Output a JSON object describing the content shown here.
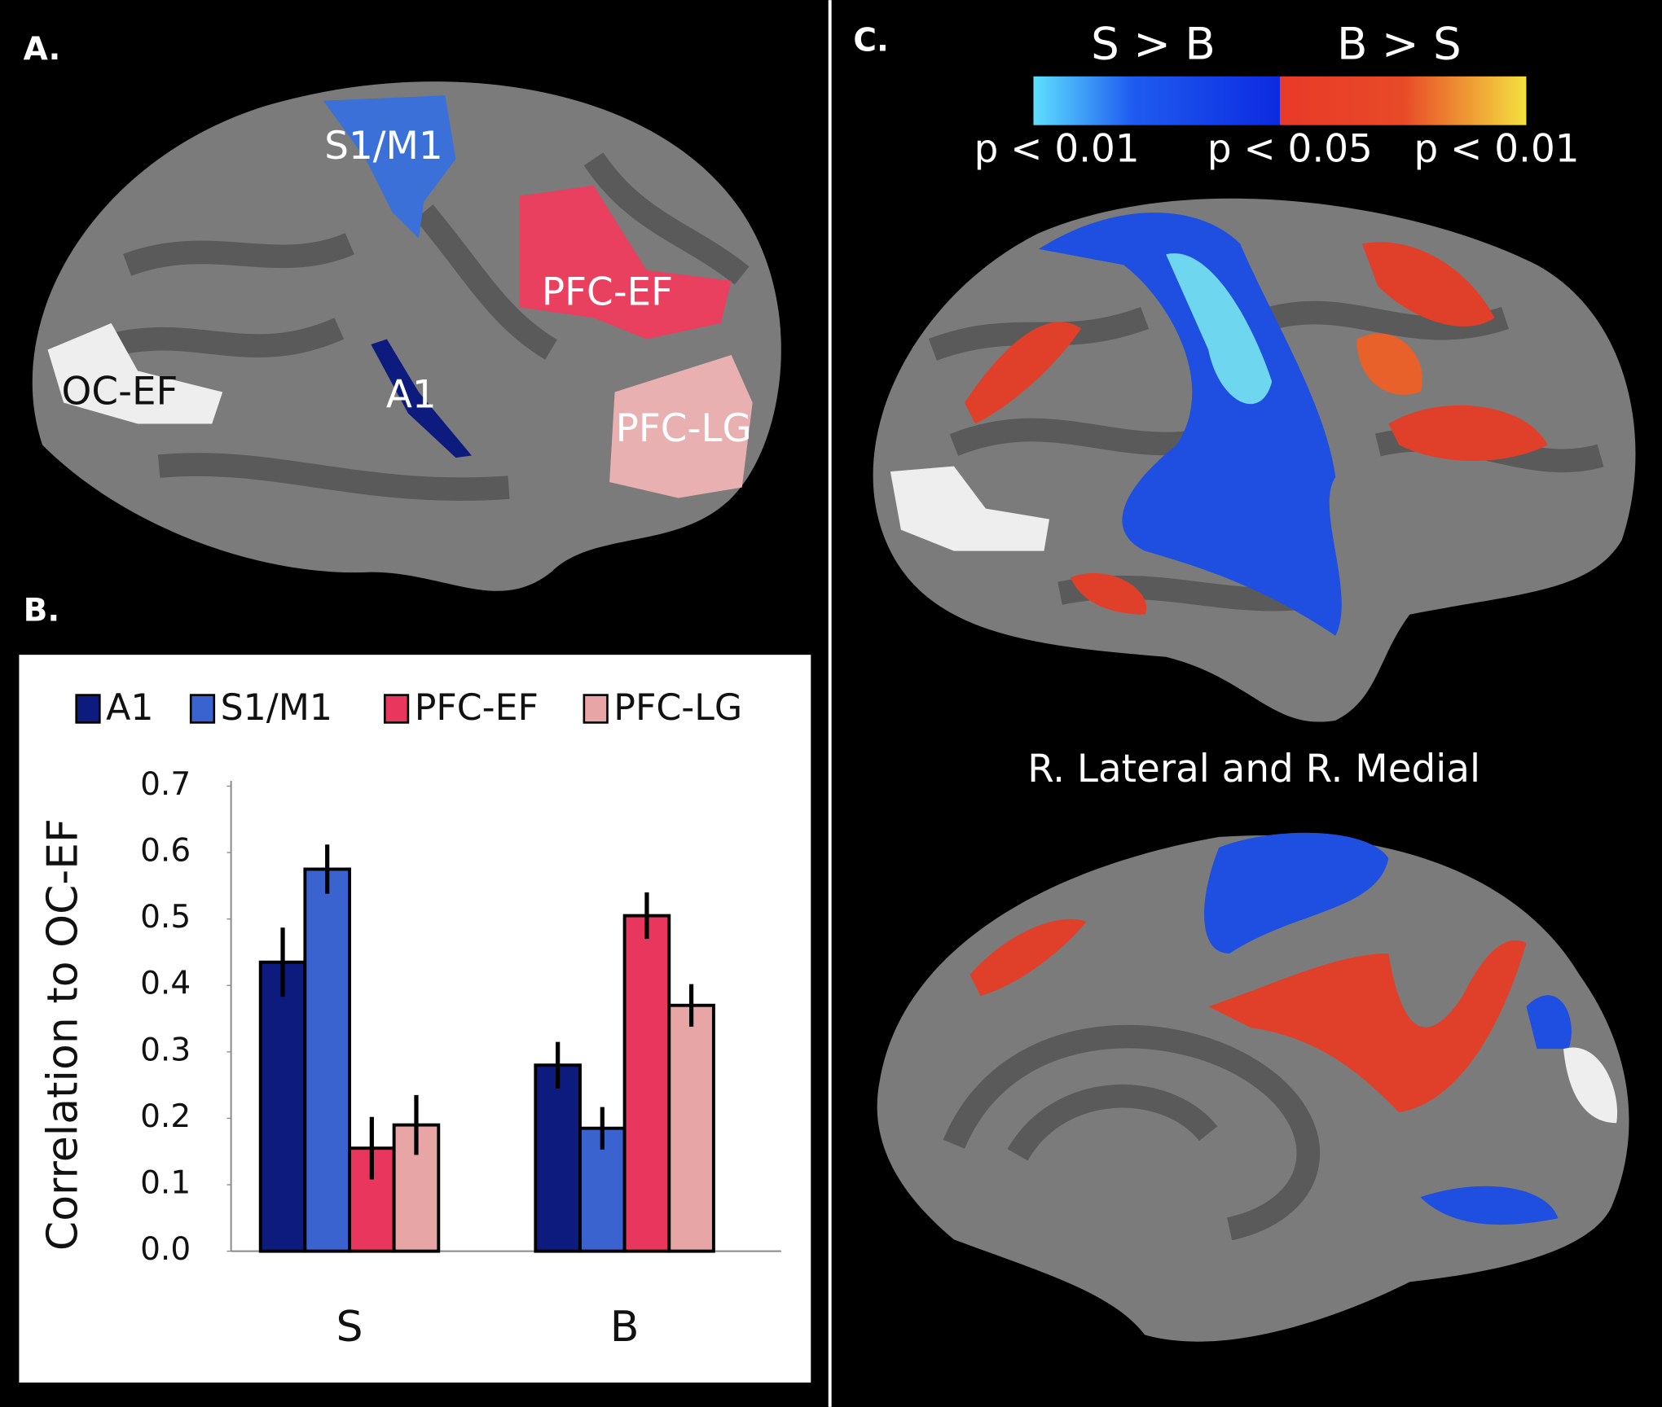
{
  "panels": {
    "a": {
      "label": "A.",
      "regions": [
        "S1/M1",
        "PFC-EF",
        "A1",
        "OC-EF",
        "PFC-LG"
      ]
    },
    "b": {
      "label": "B."
    },
    "c": {
      "label": "C.",
      "contrast_left": "S > B",
      "contrast_right": "B > S",
      "p_labels": [
        "p < 0.01",
        "p < 0.05",
        "p < 0.01"
      ],
      "caption": "R. Lateral and R. Medial"
    }
  },
  "chart_data": {
    "type": "bar",
    "y_label": "Correlation to OC-EF",
    "categories": [
      "S",
      "B"
    ],
    "series": [
      {
        "name": "A1",
        "color": "#0d1a7e",
        "values": [
          0.435,
          0.28
        ],
        "errors": [
          0.052,
          0.035
        ]
      },
      {
        "name": "S1/M1",
        "color": "#3a63d0",
        "values": [
          0.575,
          0.185
        ],
        "errors": [
          0.037,
          0.032
        ]
      },
      {
        "name": "PFC-EF",
        "color": "#e8365d",
        "values": [
          0.155,
          0.505
        ],
        "errors": [
          0.047,
          0.035
        ]
      },
      {
        "name": "PFC-LG",
        "color": "#e8a5a5",
        "values": [
          0.19,
          0.37
        ],
        "errors": [
          0.045,
          0.032
        ]
      }
    ],
    "ylim": [
      0,
      0.7
    ],
    "yticks": [
      {
        "value": 0,
        "label": "0.0"
      },
      0.1,
      0.2,
      0.3,
      0.4,
      0.5,
      0.6,
      0.7
    ],
    "legend": "top"
  }
}
